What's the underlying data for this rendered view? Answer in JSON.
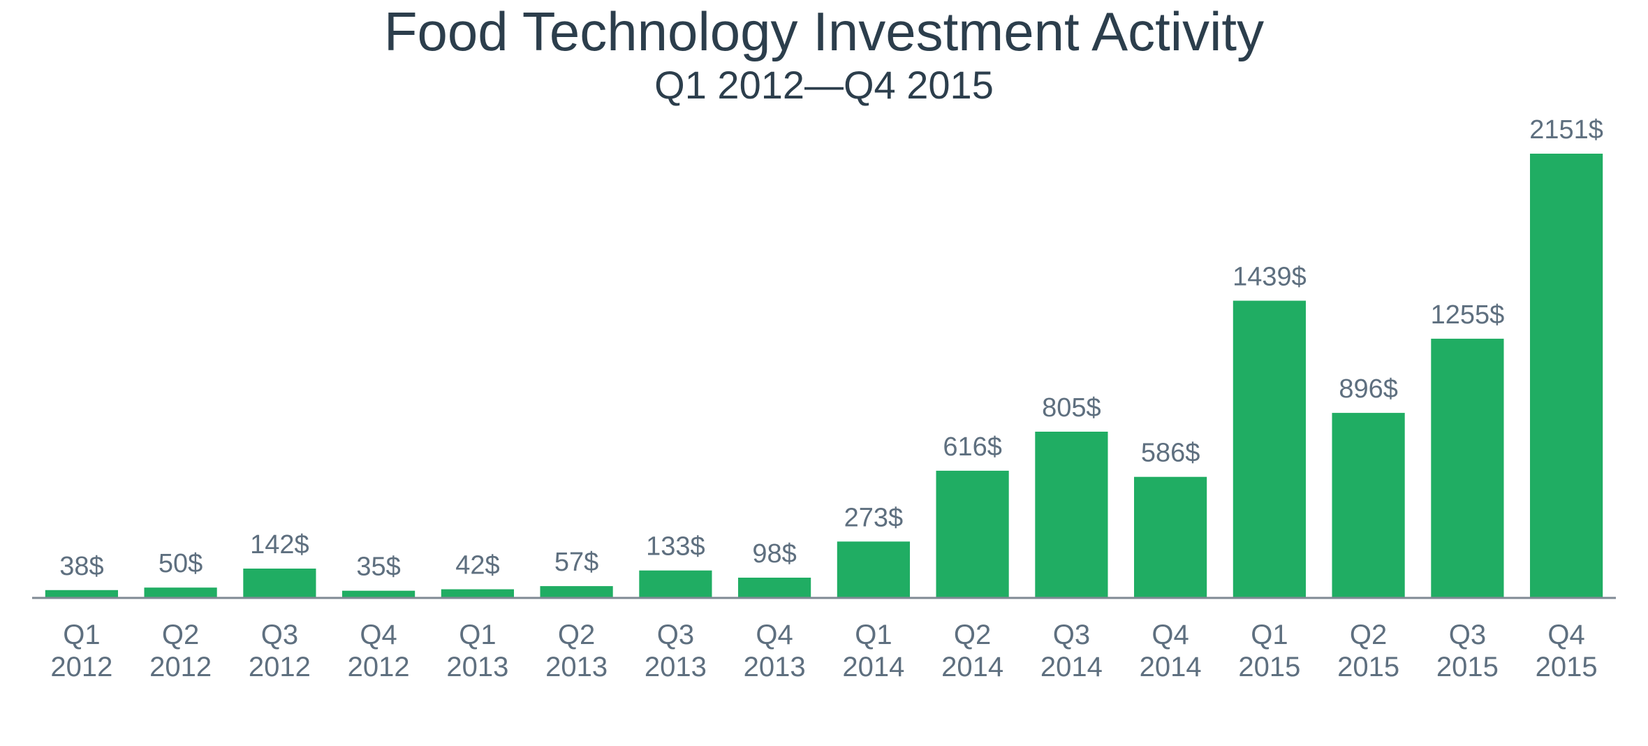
{
  "chart_data": {
    "type": "bar",
    "title": "Food Technology Investment Activity",
    "subtitle": "Q1 2012—Q4 2015",
    "xlabel": "",
    "ylabel": "",
    "ylim": [
      0,
      2151
    ],
    "grid": false,
    "legend": "none",
    "value_suffix": "$",
    "categories": [
      [
        "Q1",
        "2012"
      ],
      [
        "Q2",
        "2012"
      ],
      [
        "Q3",
        "2012"
      ],
      [
        "Q4",
        "2012"
      ],
      [
        "Q1",
        "2013"
      ],
      [
        "Q2",
        "2013"
      ],
      [
        "Q3",
        "2013"
      ],
      [
        "Q4",
        "2013"
      ],
      [
        "Q1",
        "2014"
      ],
      [
        "Q2",
        "2014"
      ],
      [
        "Q3",
        "2014"
      ],
      [
        "Q4",
        "2014"
      ],
      [
        "Q1",
        "2015"
      ],
      [
        "Q2",
        "2015"
      ],
      [
        "Q3",
        "2015"
      ],
      [
        "Q4",
        "2015"
      ]
    ],
    "values": [
      38,
      50,
      142,
      35,
      42,
      57,
      133,
      98,
      273,
      616,
      805,
      586,
      1439,
      896,
      1255,
      2151
    ],
    "colors": {
      "bar": "#20ad63",
      "title": "#2c3e4c",
      "labels": "#5e6f7f",
      "axis": "#7f8a94"
    }
  }
}
